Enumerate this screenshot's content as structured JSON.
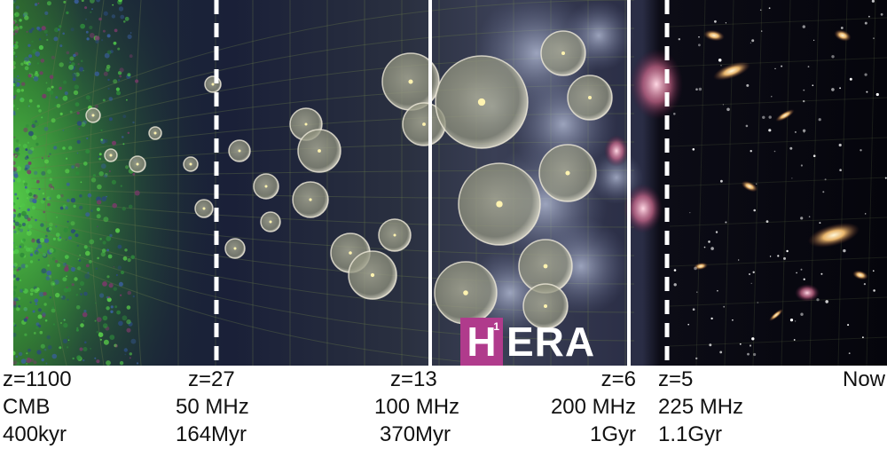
{
  "logo": {
    "letter": "H",
    "superscript": "1",
    "rest": "ERA",
    "color": "#b03b8c"
  },
  "epochs": [
    {
      "redshift": "z=1100",
      "frequency": "CMB",
      "age": "400kyr"
    },
    {
      "redshift": "z=27",
      "frequency": "50 MHz",
      "age": "164Myr"
    },
    {
      "redshift": "z=13",
      "frequency": "100 MHz",
      "age": "370Myr"
    },
    {
      "redshift": "z=6",
      "frequency": "200 MHz",
      "age": "1Gyr"
    },
    {
      "redshift": "z=5",
      "frequency": "225 MHz",
      "age": "1.1Gyr"
    },
    {
      "redshift": "Now",
      "frequency": "",
      "age": ""
    }
  ],
  "colors": {
    "cmb": "#3fbf3a",
    "bubble": "#d8d4b8",
    "galaxy": "#f3d9a0",
    "background_dark": "#0b0b18"
  }
}
